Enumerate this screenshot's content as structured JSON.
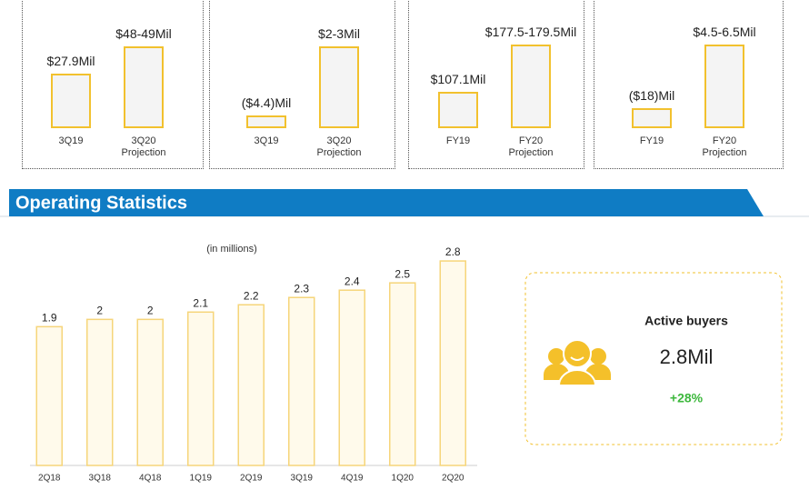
{
  "highlights": [
    {
      "categories": [
        "3Q19",
        "3Q20 Projection"
      ],
      "value_labels": [
        "$27.9Mil",
        "$48-49Mil"
      ]
    },
    {
      "categories": [
        "3Q19",
        "3Q20 Projection"
      ],
      "value_labels": [
        "($4.4)Mil",
        "$2-3Mil"
      ]
    },
    {
      "categories": [
        "FY19",
        "FY20 Projection"
      ],
      "value_labels": [
        "$107.1Mil",
        "$177.5-179.5Mil"
      ]
    },
    {
      "categories": [
        "FY19",
        "FY20 Projection"
      ],
      "value_labels": [
        "($18)Mil",
        "$4.5-6.5Mil"
      ]
    }
  ],
  "section_title": "Operating Statistics",
  "chart_data": {
    "type": "bar",
    "subtitle": "(in millions)",
    "categories": [
      "2Q18",
      "3Q18",
      "4Q18",
      "1Q19",
      "2Q19",
      "3Q19",
      "4Q19",
      "1Q20",
      "2Q20"
    ],
    "values": [
      1.9,
      2,
      2,
      2.1,
      2.2,
      2.3,
      2.4,
      2.5,
      2.8
    ],
    "color": "#fffaeb",
    "ylim": [
      0,
      3
    ]
  },
  "card": {
    "title": "Active buyers",
    "value": "2.8Mil",
    "change": "+28%"
  }
}
